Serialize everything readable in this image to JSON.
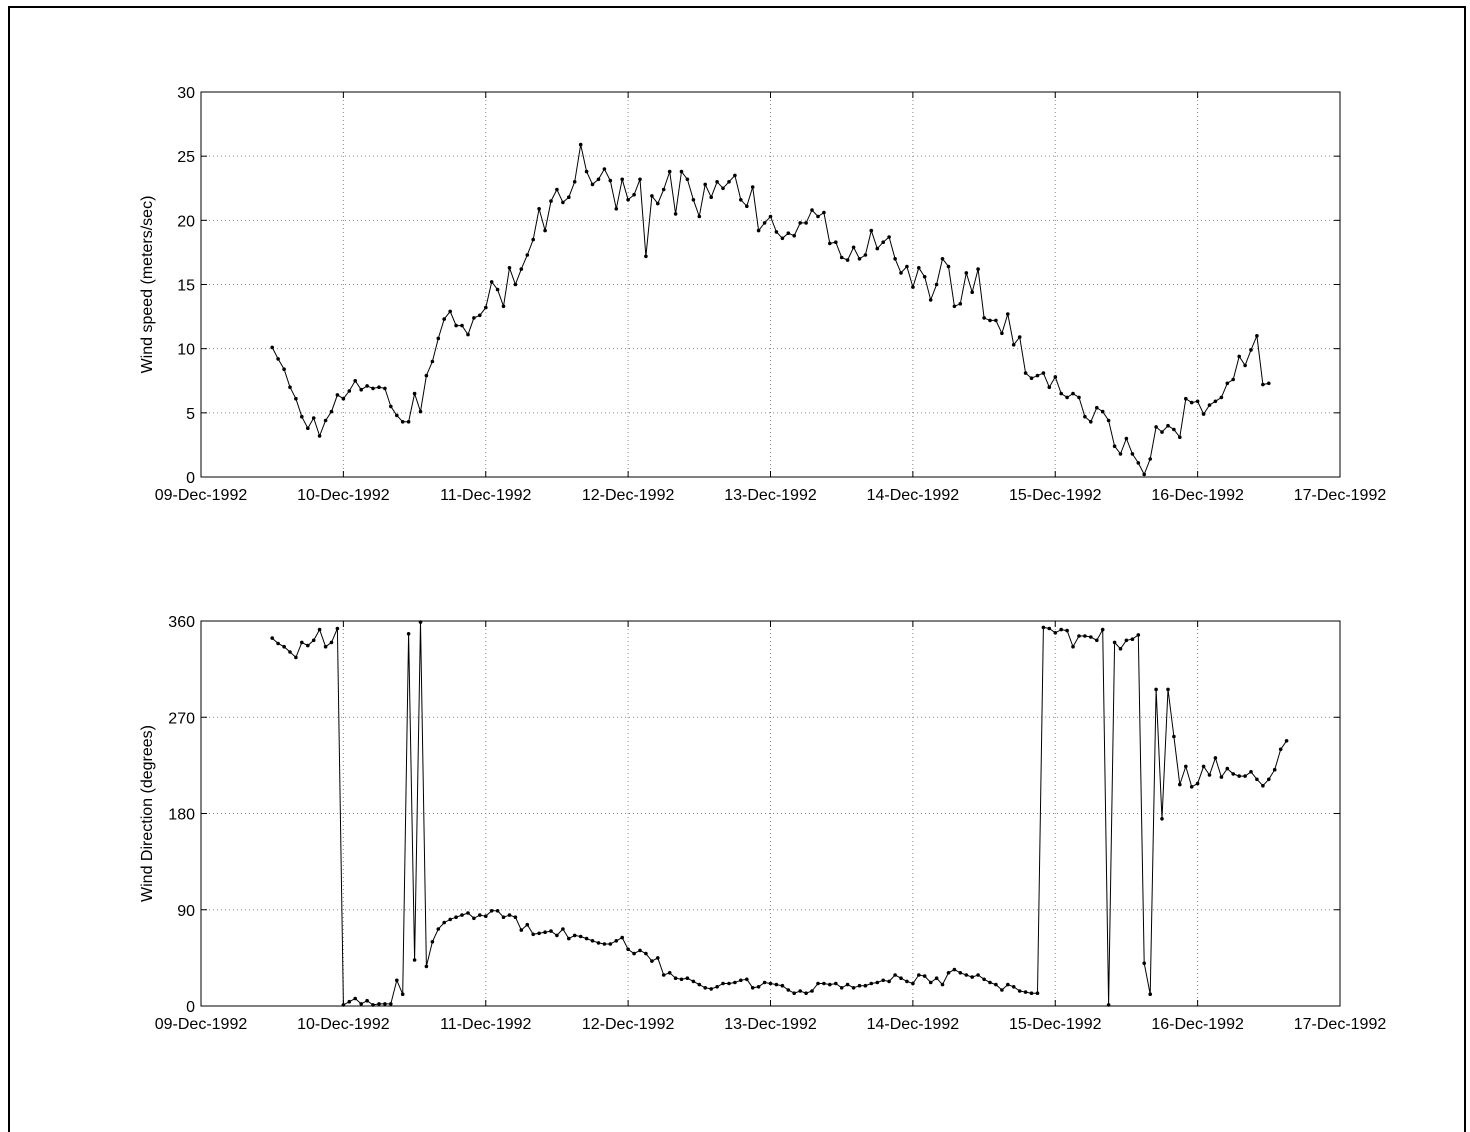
{
  "chart_data": [
    {
      "type": "line",
      "xlabel": "",
      "ylabel": "Wind speed (meters/sec)",
      "x_ticks": [
        "09-Dec-1992",
        "10-Dec-1992",
        "11-Dec-1992",
        "12-Dec-1992",
        "13-Dec-1992",
        "14-Dec-1992",
        "15-Dec-1992",
        "16-Dec-1992",
        "17-Dec-1992"
      ],
      "y_ticks": [
        "0",
        "5",
        "10",
        "15",
        "20",
        "25",
        "30"
      ],
      "xlim": [
        "09-Dec-1992",
        "17-Dec-1992"
      ],
      "ylim": [
        0,
        30
      ],
      "grid": true,
      "x_start": "09-Dec-1992 12:00",
      "x_step_hours": 1,
      "series": [
        {
          "values": [
            10.1,
            9.2,
            8.4,
            7.0,
            6.1,
            4.7,
            3.8,
            4.6,
            3.2,
            4.4,
            5.1,
            6.4,
            6.1,
            6.7,
            7.5,
            6.8,
            7.1,
            6.9,
            7.0,
            6.9,
            5.5,
            4.8,
            4.3,
            4.3,
            6.5,
            5.1,
            7.9,
            9.0,
            10.8,
            12.3,
            12.9,
            11.8,
            11.8,
            11.1,
            12.4,
            12.6,
            13.2,
            15.2,
            14.6,
            13.3,
            16.3,
            15.0,
            16.2,
            17.3,
            18.5,
            20.9,
            19.2,
            21.5,
            22.4,
            21.4,
            21.8,
            23.0,
            25.9,
            23.8,
            22.8,
            23.2,
            24.0,
            23.1,
            20.9,
            23.2,
            21.6,
            22.0,
            23.2,
            17.2,
            21.9,
            21.3,
            22.4,
            23.8,
            20.5,
            23.8,
            23.2,
            21.6,
            20.3,
            22.8,
            21.8,
            23.0,
            22.5,
            23.0,
            23.5,
            21.6,
            21.1,
            22.6,
            19.2,
            19.8,
            20.3,
            19.1,
            18.6,
            19.0,
            18.8,
            19.8,
            19.8,
            20.8,
            20.3,
            20.6,
            18.2,
            18.3,
            17.1,
            16.9,
            17.9,
            17.0,
            17.3,
            19.2,
            17.8,
            18.3,
            18.7,
            17.0,
            15.9,
            16.4,
            14.8,
            16.3,
            15.6,
            13.8,
            15.0,
            17.0,
            16.4,
            13.3,
            13.5,
            15.9,
            14.4,
            16.2,
            12.4,
            12.2,
            12.2,
            11.2,
            12.7,
            10.3,
            10.9,
            8.1,
            7.7,
            7.9,
            8.1,
            7.0,
            7.8,
            6.5,
            6.2,
            6.5,
            6.2,
            4.7,
            4.3,
            5.4,
            5.1,
            4.4,
            2.4,
            1.8,
            3.0,
            1.8,
            1.1,
            0.2,
            1.4,
            3.9,
            3.5,
            4.0,
            3.7,
            3.1,
            6.1,
            5.8,
            5.9,
            4.9,
            5.6,
            5.9,
            6.2,
            7.3,
            7.6,
            9.4,
            8.7,
            9.9,
            11.0,
            7.2,
            7.3
          ]
        }
      ]
    },
    {
      "type": "line",
      "xlabel": "",
      "ylabel": "Wind Direction (degrees)",
      "x_ticks": [
        "09-Dec-1992",
        "10-Dec-1992",
        "11-Dec-1992",
        "12-Dec-1992",
        "13-Dec-1992",
        "14-Dec-1992",
        "15-Dec-1992",
        "16-Dec-1992",
        "17-Dec-1992"
      ],
      "y_ticks": [
        "0",
        "90",
        "180",
        "270",
        "360"
      ],
      "xlim": [
        "09-Dec-1992",
        "17-Dec-1992"
      ],
      "ylim": [
        0,
        360
      ],
      "grid": true,
      "x_start": "09-Dec-1992 12:00",
      "x_step_hours": 1,
      "series": [
        {
          "values": [
            344,
            339,
            336,
            331,
            326,
            340,
            337,
            342,
            352,
            336,
            340,
            353,
            1,
            4,
            7,
            2,
            5,
            1,
            2,
            2,
            2,
            24,
            11,
            348,
            43,
            359,
            37,
            60,
            72,
            78,
            81,
            83,
            85,
            87,
            82,
            85,
            84,
            89,
            89,
            83,
            85,
            83,
            71,
            76,
            67,
            68,
            69,
            70,
            66,
            72,
            63,
            66,
            65,
            63,
            61,
            59,
            58,
            58,
            61,
            64,
            53,
            49,
            52,
            49,
            42,
            45,
            29,
            31,
            26,
            25,
            26,
            23,
            20,
            17,
            16,
            18,
            21,
            21,
            22,
            24,
            25,
            17,
            18,
            22,
            21,
            20,
            19,
            15,
            12,
            14,
            12,
            14,
            21,
            21,
            20,
            21,
            17,
            20,
            17,
            19,
            19,
            21,
            22,
            24,
            23,
            29,
            26,
            23,
            21,
            29,
            28,
            22,
            26,
            20,
            31,
            34,
            31,
            29,
            27,
            29,
            25,
            22,
            20,
            15,
            20,
            18,
            14,
            13,
            12,
            12,
            354,
            353,
            349,
            352,
            351,
            336,
            346,
            346,
            345,
            342,
            352,
            1,
            340,
            334,
            342,
            343,
            347,
            40,
            11,
            296,
            175,
            296,
            252,
            207,
            224,
            205,
            208,
            224,
            216,
            232,
            214,
            222,
            217,
            215,
            215,
            219,
            212,
            206,
            212,
            221,
            240,
            248
          ]
        }
      ]
    }
  ]
}
